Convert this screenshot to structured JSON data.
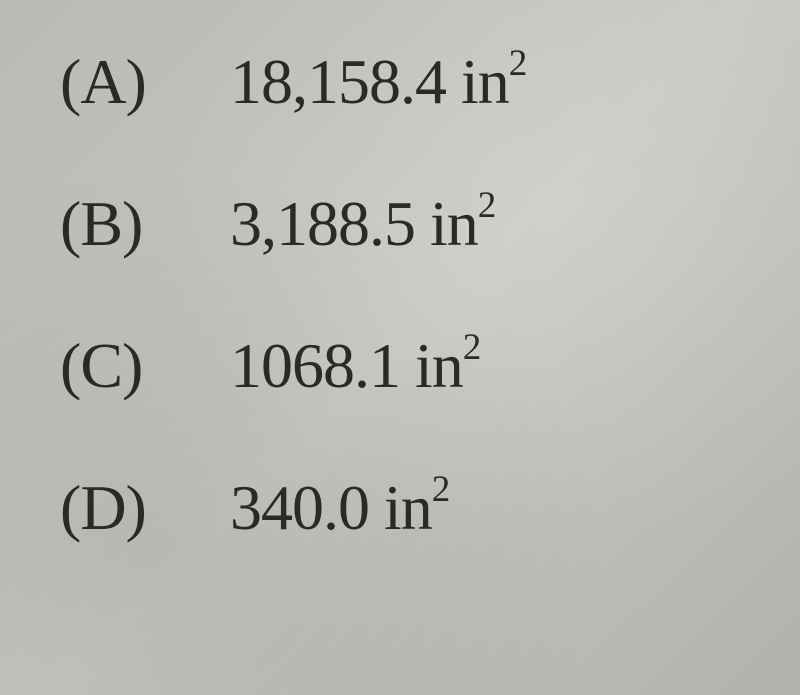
{
  "options": [
    {
      "label": "(A)",
      "value": "18,158.4 in",
      "exponent": "2"
    },
    {
      "label": "(B)",
      "value": "3,188.5 in",
      "exponent": "2"
    },
    {
      "label": "(C)",
      "value": "1068.1 in",
      "exponent": "2"
    },
    {
      "label": "(D)",
      "value": "340.0 in",
      "exponent": "2"
    }
  ]
}
